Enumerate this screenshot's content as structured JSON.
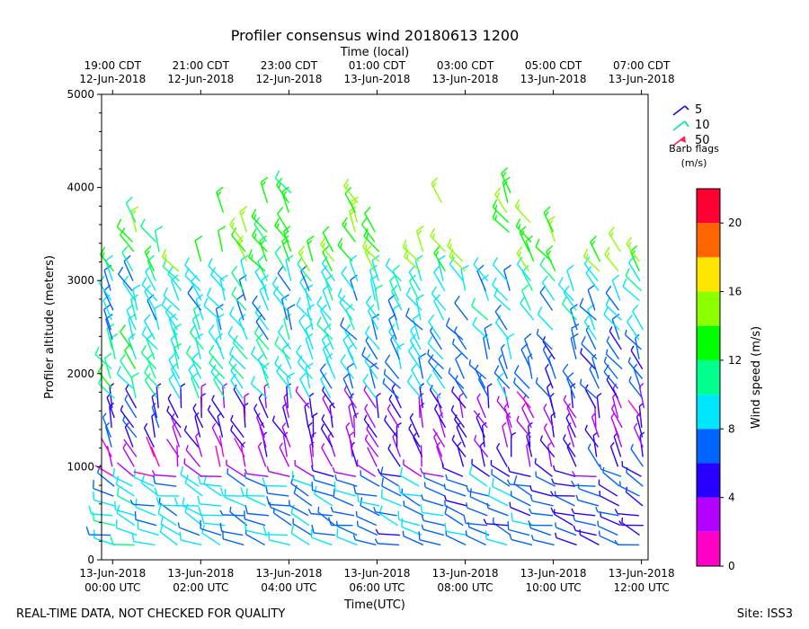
{
  "chart_data": {
    "type": "wind-barb-profile",
    "title": "Profiler consensus wind 20180613 1200",
    "xlabel": "Time(UTC)",
    "top_xlabel": "Time (local)",
    "ylabel": "Profiler altitude (meters)",
    "ylim": [
      0,
      5000
    ],
    "yticks": [
      0,
      1000,
      2000,
      3000,
      4000,
      5000
    ],
    "xlim_hours_utc": [
      -0.25,
      12.15
    ],
    "bottom_ticks": [
      {
        "hour": 0,
        "line1": "13-Jun-2018",
        "line2": "00:00 UTC"
      },
      {
        "hour": 2,
        "line1": "13-Jun-2018",
        "line2": "02:00 UTC"
      },
      {
        "hour": 4,
        "line1": "13-Jun-2018",
        "line2": "04:00 UTC"
      },
      {
        "hour": 6,
        "line1": "13-Jun-2018",
        "line2": "06:00 UTC"
      },
      {
        "hour": 8,
        "line1": "13-Jun-2018",
        "line2": "08:00 UTC"
      },
      {
        "hour": 10,
        "line1": "13-Jun-2018",
        "line2": "10:00 UTC"
      },
      {
        "hour": 12,
        "line1": "13-Jun-2018",
        "line2": "12:00 UTC"
      }
    ],
    "top_ticks": [
      {
        "hour": 0,
        "line1": "19:00 CDT",
        "line2": "12-Jun-2018"
      },
      {
        "hour": 2,
        "line1": "21:00 CDT",
        "line2": "12-Jun-2018"
      },
      {
        "hour": 4,
        "line1": "23:00 CDT",
        "line2": "12-Jun-2018"
      },
      {
        "hour": 6,
        "line1": "01:00 CDT",
        "line2": "13-Jun-2018"
      },
      {
        "hour": 8,
        "line1": "03:00 CDT",
        "line2": "13-Jun-2018"
      },
      {
        "hour": 10,
        "line1": "05:00 CDT",
        "line2": "13-Jun-2018"
      },
      {
        "hour": 12,
        "line1": "07:00 CDT",
        "line2": "13-Jun-2018"
      }
    ],
    "legend": {
      "entries": [
        {
          "label": "5",
          "color": "#1010d0"
        },
        {
          "label": "10",
          "color": "#00e8a0"
        },
        {
          "label": "50",
          "color": "#ff2050"
        }
      ],
      "caption_line1": "Barb flags",
      "caption_line2": "(m/s)"
    },
    "colorbar": {
      "label": "Wind speed (m/s)",
      "min": 0,
      "max": 22,
      "ticks": [
        0,
        4,
        8,
        12,
        16,
        20
      ],
      "bins": [
        {
          "from": 0,
          "to": 2,
          "color": "#ff00c8"
        },
        {
          "from": 2,
          "to": 4,
          "color": "#b400ff"
        },
        {
          "from": 4,
          "to": 6,
          "color": "#2800ff"
        },
        {
          "from": 6,
          "to": 8,
          "color": "#0064ff"
        },
        {
          "from": 8,
          "to": 10,
          "color": "#00e6ff"
        },
        {
          "from": 10,
          "to": 12,
          "color": "#00ff8c"
        },
        {
          "from": 12,
          "to": 14,
          "color": "#00ff00"
        },
        {
          "from": 14,
          "to": 16,
          "color": "#8cff00"
        },
        {
          "from": 16,
          "to": 18,
          "color": "#ffe600"
        },
        {
          "from": 18,
          "to": 20,
          "color": "#ff6400"
        },
        {
          "from": 20,
          "to": 22,
          "color": "#ff0032"
        }
      ]
    },
    "profile_times_utc": [
      0,
      0.5,
      1,
      1.5,
      2,
      2.5,
      3,
      3.5,
      4,
      4.5,
      5,
      5.5,
      6,
      6.5,
      7,
      7.5,
      8,
      8.5,
      9,
      9.5,
      10,
      10.5,
      11,
      11.5,
      12
    ],
    "speed_profile": {
      "comment": "approximate wind speed (m/s) vs altitude bands, read from barb colors",
      "bands": [
        {
          "alt_from": 150,
          "alt_to": 800,
          "speed_early": 9,
          "speed_late": 6
        },
        {
          "alt_from": 800,
          "alt_to": 1200,
          "speed_early": 2,
          "speed_late": 5
        },
        {
          "alt_from": 1200,
          "alt_to": 1700,
          "speed_early": 5,
          "speed_late": 3
        },
        {
          "alt_from": 1700,
          "alt_to": 2300,
          "speed_early": 11,
          "speed_late": 6
        },
        {
          "alt_from": 2300,
          "alt_to": 3000,
          "speed_early": 9,
          "speed_late": 9
        },
        {
          "alt_from": 3000,
          "alt_to": 4300,
          "speed_early": 13,
          "speed_late": 14
        }
      ]
    },
    "footer_left": "REAL-TIME DATA, NOT CHECKED FOR QUALITY",
    "footer_right": "Site: ISS3"
  }
}
